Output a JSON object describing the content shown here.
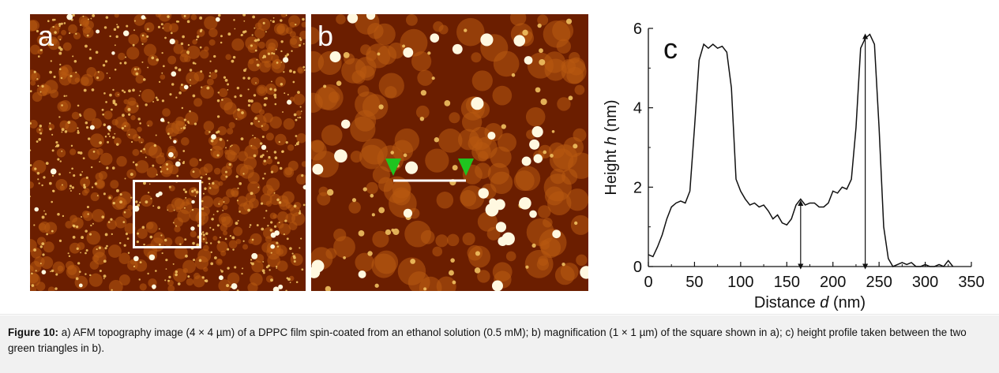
{
  "panels": {
    "a_label": "a",
    "b_label": "b",
    "c_label": "c"
  },
  "colors": {
    "afm_dark": "#6b1e00",
    "afm_mid": "#b85a10",
    "afm_light": "#f0c060",
    "marker_green": "#1fc41f",
    "line_white": "#ffffff"
  },
  "caption": {
    "label": "Figure 10:",
    "text": " a) AFM topography image (4 × 4 µm) of a DPPC film spin-coated from an ethanol solution (0.5 mM); b) magnification (1 × 1 µm) of the square shown in a); c) height profile taken between the two green triangles in b)."
  },
  "chart_data": {
    "type": "line",
    "title": "",
    "xlabel_prefix": "Distance ",
    "xlabel_var": "d",
    "xlabel_unit": " (nm)",
    "ylabel_prefix": "Height ",
    "ylabel_var": "h",
    "ylabel_unit": " (nm)",
    "xlim": [
      0,
      350
    ],
    "ylim": [
      0,
      6
    ],
    "xticks": [
      0,
      50,
      100,
      150,
      200,
      250,
      300,
      350
    ],
    "yticks": [
      0,
      2,
      4,
      6
    ],
    "grid": false,
    "series": [
      {
        "x": [
          0,
          5,
          10,
          15,
          20,
          25,
          30,
          35,
          40,
          45,
          50,
          55,
          60,
          65,
          70,
          75,
          80,
          85,
          90,
          95,
          100,
          105,
          110,
          115,
          120,
          125,
          130,
          135,
          140,
          145,
          150,
          155,
          160,
          165,
          170,
          175,
          180,
          185,
          190,
          195,
          200,
          205,
          210,
          215,
          220,
          225,
          230,
          235,
          240,
          245,
          250,
          255,
          260,
          265,
          270,
          275,
          280,
          285,
          290,
          295,
          300,
          305,
          310,
          315,
          320,
          325,
          330
        ],
        "y": [
          0.3,
          0.25,
          0.5,
          0.8,
          1.2,
          1.5,
          1.6,
          1.65,
          1.6,
          1.9,
          3.5,
          5.2,
          5.6,
          5.5,
          5.6,
          5.5,
          5.55,
          5.4,
          4.5,
          2.2,
          1.9,
          1.7,
          1.55,
          1.6,
          1.5,
          1.55,
          1.4,
          1.2,
          1.3,
          1.1,
          1.05,
          1.2,
          1.55,
          1.7,
          1.55,
          1.6,
          1.6,
          1.5,
          1.5,
          1.6,
          1.9,
          1.85,
          2.0,
          1.95,
          2.2,
          3.5,
          5.5,
          5.75,
          5.85,
          5.6,
          3.5,
          1.0,
          0.2,
          0.0,
          0.05,
          0.1,
          0.05,
          0.1,
          0.0,
          0.0,
          0.05,
          0.0,
          0.0,
          0.05,
          0.0,
          0.15,
          0.0
        ]
      }
    ],
    "annotations": [
      {
        "type": "arrow",
        "x": 165,
        "y_from": 0,
        "y_to": 1.6
      },
      {
        "type": "arrow",
        "x": 235,
        "y_from": 0,
        "y_to": 5.8
      }
    ]
  }
}
